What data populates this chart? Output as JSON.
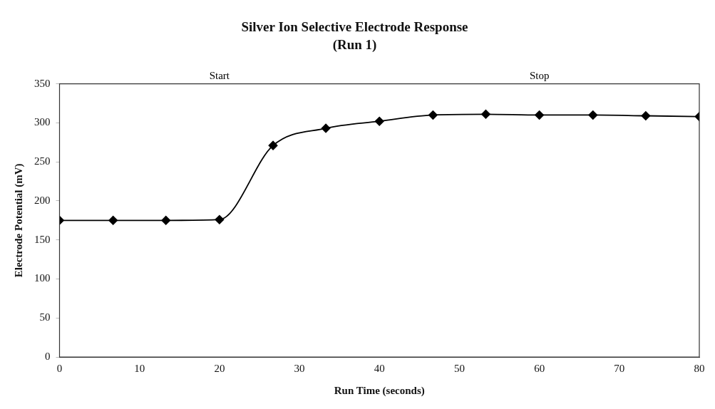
{
  "chart_data": {
    "type": "line",
    "title": "Silver Ion Selective Electrode Response",
    "subtitle": "(Run 1)",
    "xlabel": "Run Time (seconds)",
    "ylabel": "Electrode Potential (mV)",
    "x": [
      0,
      6.7,
      13.3,
      20,
      26.7,
      33.3,
      40,
      46.7,
      53.3,
      60,
      66.7,
      73.3,
      80
    ],
    "series": [
      {
        "color": "#000000",
        "values": [
          175,
          175,
          175,
          176,
          271,
          293,
          302,
          310,
          311,
          310,
          310,
          309,
          308
        ]
      }
    ],
    "xlim": [
      0,
      80
    ],
    "xticks": [
      0,
      10,
      20,
      30,
      40,
      50,
      60,
      70,
      80
    ],
    "ylim": [
      0,
      350
    ],
    "yticks": [
      0,
      50,
      100,
      150,
      200,
      250,
      300,
      350
    ],
    "annotations": [
      "Start",
      "Stop"
    ],
    "grid": false,
    "legend": false,
    "marker": "diamond",
    "line_style": "solid"
  }
}
